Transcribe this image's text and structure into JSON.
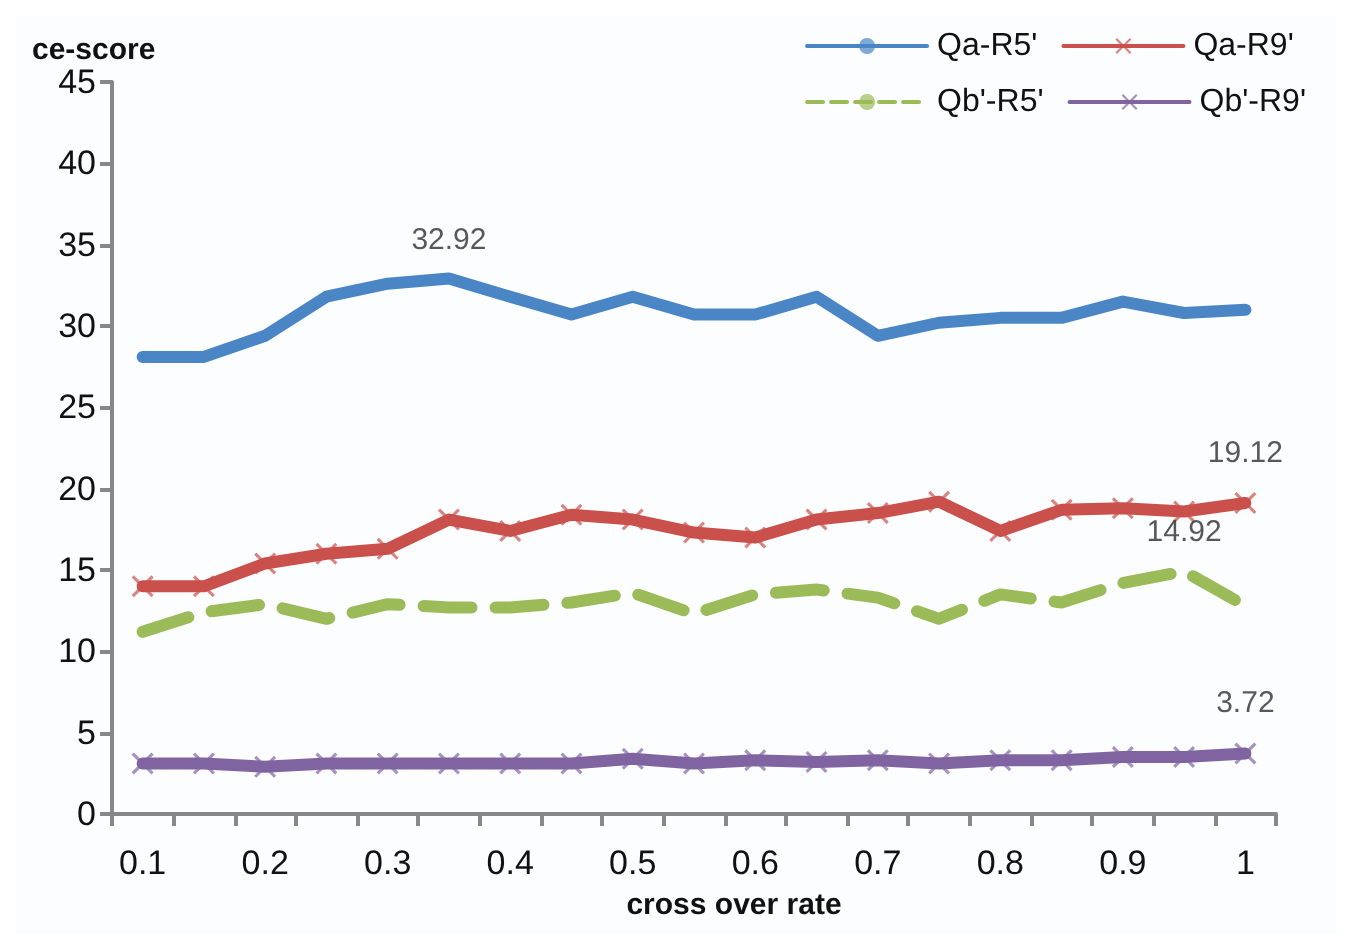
{
  "chart_data": {
    "type": "line",
    "xlabel": "cross over rate",
    "ylabel": "ce-score",
    "categories": [
      "0.1",
      null,
      "0.2",
      null,
      "0.3",
      null,
      "0.4",
      null,
      "0.5",
      null,
      "0.6",
      null,
      "0.7",
      null,
      "0.8",
      null,
      "0.9",
      null,
      "1"
    ],
    "ylim": [
      0,
      45
    ],
    "yticks": [
      0,
      5,
      10,
      15,
      20,
      25,
      30,
      35,
      40,
      45
    ],
    "grid": false,
    "legend": "top right",
    "marker": "none",
    "line_style": "solid",
    "series": [
      {
        "name": "Qa-R5'",
        "color": "#4a86c5",
        "values": [
          28.1,
          28.1,
          29.4,
          31.8,
          32.6,
          32.92,
          31.8,
          30.7,
          31.8,
          30.7,
          30.7,
          31.8,
          29.4,
          30.2,
          30.5,
          30.5,
          31.5,
          30.8,
          31.0
        ],
        "value_labels": [
          null,
          null,
          null,
          null,
          null,
          "32.92",
          null,
          null,
          null,
          null,
          null,
          null,
          null,
          null,
          null,
          null,
          null,
          null,
          null
        ]
      },
      {
        "name": "Qa-R9'",
        "color": "#c9504b",
        "marker": "cross",
        "values": [
          14.0,
          14.0,
          15.4,
          16.0,
          16.3,
          18.1,
          17.4,
          18.4,
          18.1,
          17.3,
          17.0,
          18.1,
          18.5,
          19.2,
          17.4,
          18.7,
          18.8,
          18.6,
          19.12
        ],
        "value_labels": [
          null,
          null,
          null,
          null,
          null,
          null,
          null,
          null,
          null,
          null,
          null,
          null,
          null,
          null,
          null,
          null,
          null,
          null,
          "19.12"
        ]
      },
      {
        "name": "Qb'-R5'",
        "color": "#9bbb59",
        "line_style": "dashed",
        "values": [
          11.2,
          12.4,
          12.9,
          12.0,
          12.9,
          12.7,
          12.7,
          13.0,
          13.6,
          12.3,
          13.5,
          13.8,
          13.3,
          12.0,
          13.5,
          13.0,
          14.2,
          14.92,
          12.8
        ],
        "value_labels": [
          null,
          null,
          null,
          null,
          null,
          null,
          null,
          null,
          null,
          null,
          null,
          null,
          null,
          null,
          null,
          null,
          null,
          "14.92",
          null
        ]
      },
      {
        "name": "Qb'-R9'",
        "color": "#8064a2",
        "marker": "cross",
        "values": [
          3.1,
          3.1,
          2.9,
          3.1,
          3.1,
          3.1,
          3.1,
          3.1,
          3.4,
          3.1,
          3.3,
          3.2,
          3.3,
          3.1,
          3.3,
          3.3,
          3.5,
          3.5,
          3.72
        ],
        "value_labels": [
          null,
          null,
          null,
          null,
          null,
          null,
          null,
          null,
          null,
          null,
          null,
          null,
          null,
          null,
          null,
          null,
          null,
          null,
          "3.72"
        ]
      }
    ]
  }
}
